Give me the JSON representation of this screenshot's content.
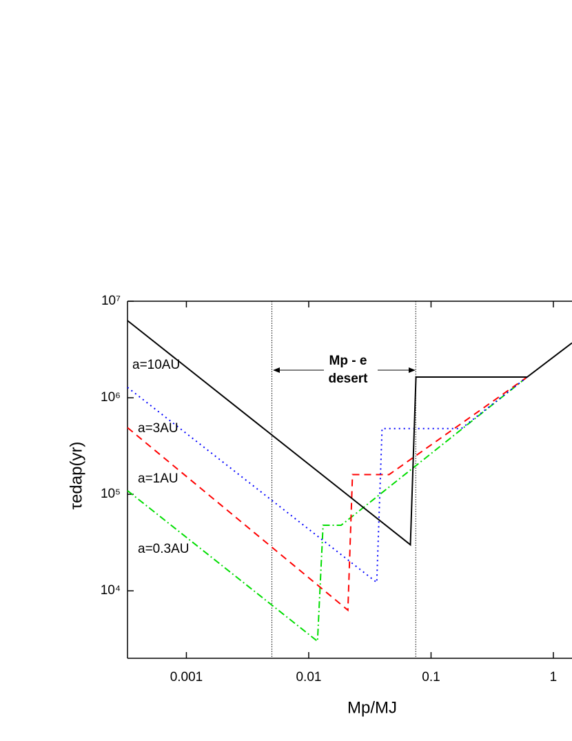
{
  "chart_data": {
    "type": "line",
    "xlabel": "Mp/MJ",
    "ylabel": "τedap(yr)",
    "xscale": "log",
    "yscale": "log",
    "xlim": [
      0.00033,
      1.42
    ],
    "ylim": [
      2000,
      10000000
    ],
    "xticks": [
      0.001,
      0.01,
      0.1,
      1
    ],
    "yticks": [
      {
        "value": 10000,
        "label": "10⁴"
      },
      {
        "value": 100000,
        "label": "10⁵"
      },
      {
        "value": 1000000,
        "label": "10⁶"
      },
      {
        "value": 10000000,
        "label": "10⁷"
      }
    ],
    "reference_lines": [
      0.005,
      0.075
    ],
    "annotations": [
      "Mp - e",
      "desert"
    ],
    "series": [
      {
        "name": "a=10AU",
        "color": "#000000",
        "dash": "solid",
        "x": [
          0.00033,
          0.0678,
          0.0753,
          0.61,
          1.42
        ],
        "values": [
          6300000,
          30000,
          1640000,
          1640000,
          3700000
        ]
      },
      {
        "name": "a=3AU",
        "color": "#0000ff",
        "dash": "dotted",
        "x": [
          0.00033,
          0.036,
          0.0398,
          0.177,
          0.61
        ],
        "values": [
          1280000,
          12200,
          480000,
          480000,
          1640000
        ]
      },
      {
        "name": "a=1AU",
        "color": "#ff0000",
        "dash": "dashed",
        "x": [
          0.00033,
          0.0209,
          0.0228,
          0.0454,
          0.61
        ],
        "values": [
          490000,
          6300,
          160000,
          160000,
          1640000
        ]
      },
      {
        "name": "a=0.3AU",
        "color": "#00dd00",
        "dash": "dashdot",
        "x": [
          0.00033,
          0.0118,
          0.0131,
          0.0184,
          0.61
        ],
        "values": [
          109000,
          3000,
          47800,
          47800,
          1640000
        ]
      }
    ]
  }
}
